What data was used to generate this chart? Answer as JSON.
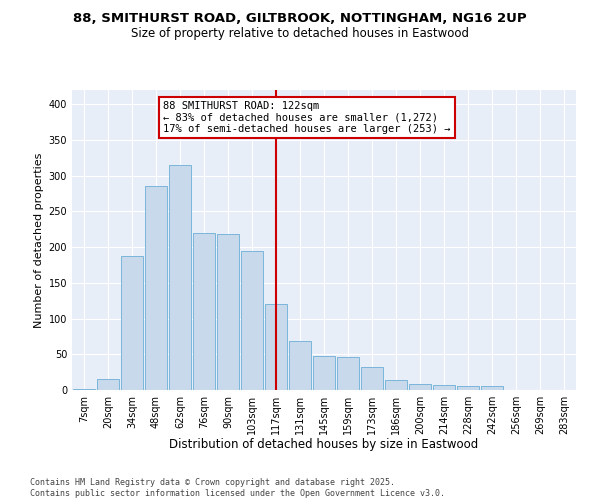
{
  "title_line1": "88, SMITHURST ROAD, GILTBROOK, NOTTINGHAM, NG16 2UP",
  "title_line2": "Size of property relative to detached houses in Eastwood",
  "xlabel": "Distribution of detached houses by size in Eastwood",
  "ylabel": "Number of detached properties",
  "categories": [
    "7sqm",
    "20sqm",
    "34sqm",
    "48sqm",
    "62sqm",
    "76sqm",
    "90sqm",
    "103sqm",
    "117sqm",
    "131sqm",
    "145sqm",
    "159sqm",
    "173sqm",
    "186sqm",
    "200sqm",
    "214sqm",
    "228sqm",
    "242sqm",
    "256sqm",
    "269sqm",
    "283sqm"
  ],
  "values": [
    2,
    16,
    187,
    285,
    315,
    220,
    218,
    195,
    120,
    69,
    47,
    46,
    32,
    14,
    8,
    7,
    5,
    6,
    0,
    0,
    0
  ],
  "bar_color": "#c9d9ec",
  "bar_edge_color": "#6baed6",
  "vline_x": 8,
  "vline_color": "#cc0000",
  "annotation_text": "88 SMITHURST ROAD: 122sqm\n← 83% of detached houses are smaller (1,272)\n17% of semi-detached houses are larger (253) →",
  "annotation_box_color": "#cc0000",
  "ylim": [
    0,
    420
  ],
  "yticks": [
    0,
    50,
    100,
    150,
    200,
    250,
    300,
    350,
    400
  ],
  "background_color": "#e8eef8",
  "footer_text": "Contains HM Land Registry data © Crown copyright and database right 2025.\nContains public sector information licensed under the Open Government Licence v3.0.",
  "title_fontsize": 9.5,
  "subtitle_fontsize": 8.5,
  "annotation_fontsize": 7.5,
  "xlabel_fontsize": 8.5,
  "ylabel_fontsize": 8,
  "tick_fontsize": 7,
  "footer_fontsize": 6
}
